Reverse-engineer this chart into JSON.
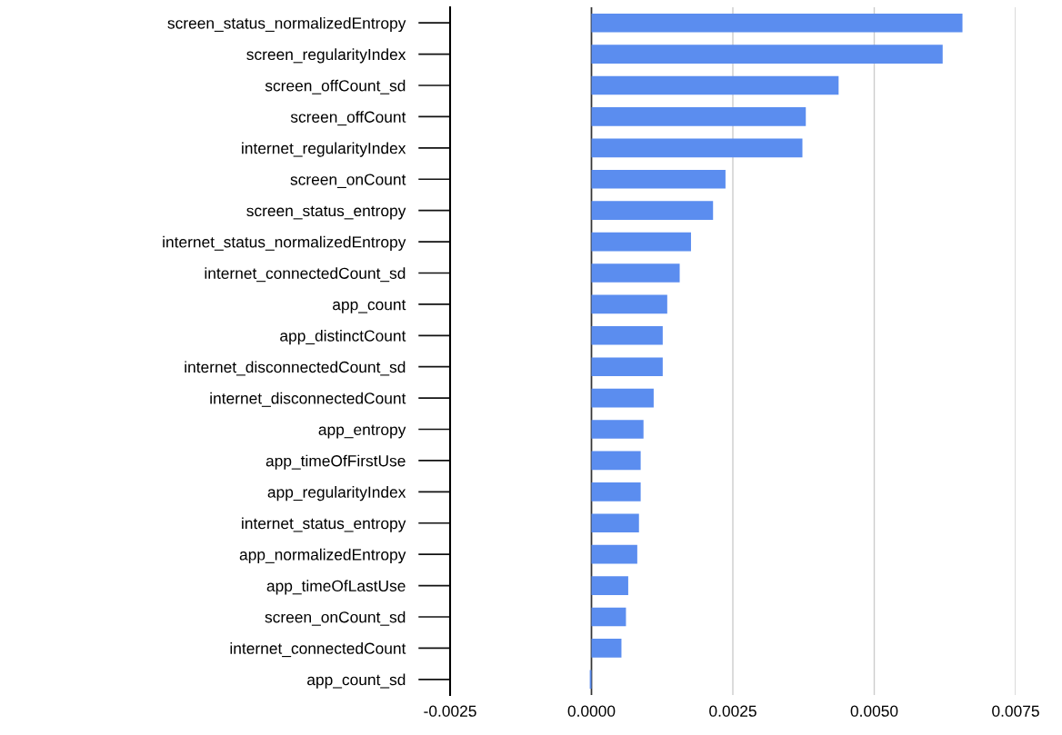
{
  "chart_data": {
    "type": "bar",
    "orientation": "horizontal",
    "categories": [
      "screen_status_normalizedEntropy",
      "screen_regularityIndex",
      "screen_offCount_sd",
      "screen_offCount",
      "internet_regularityIndex",
      "screen_onCount",
      "screen_status_entropy",
      "internet_status_normalizedEntropy",
      "internet_connectedCount_sd",
      "app_count",
      "app_distinctCount",
      "internet_disconnectedCount_sd",
      "internet_disconnectedCount",
      "app_entropy",
      "app_timeOfFirstUse",
      "app_regularityIndex",
      "internet_status_entropy",
      "app_normalizedEntropy",
      "app_timeOfLastUse",
      "screen_onCount_sd",
      "internet_connectedCount",
      "app_count_sd"
    ],
    "values": [
      0.00656,
      0.00621,
      0.00437,
      0.00379,
      0.00373,
      0.00237,
      0.00215,
      0.00176,
      0.00156,
      0.00134,
      0.00126,
      0.00126,
      0.0011,
      0.00092,
      0.00087,
      0.00087,
      0.00084,
      0.00081,
      0.00065,
      0.00061,
      0.00053,
      -3e-05
    ],
    "color": "#5b8def",
    "xlim": [
      -0.0025,
      0.0075
    ],
    "xticks": [
      {
        "value": -0.0025,
        "label": "-0.0025"
      },
      {
        "value": 0,
        "label": "0.0000"
      },
      {
        "value": 0.0025,
        "label": "0.0025"
      },
      {
        "value": 0.005,
        "label": "0.0050"
      },
      {
        "value": 0.0075,
        "label": "0.0075"
      }
    ],
    "grid": "x",
    "ref_lines": [
      {
        "axis": "x",
        "value": 0,
        "color": "#333333"
      }
    ]
  }
}
